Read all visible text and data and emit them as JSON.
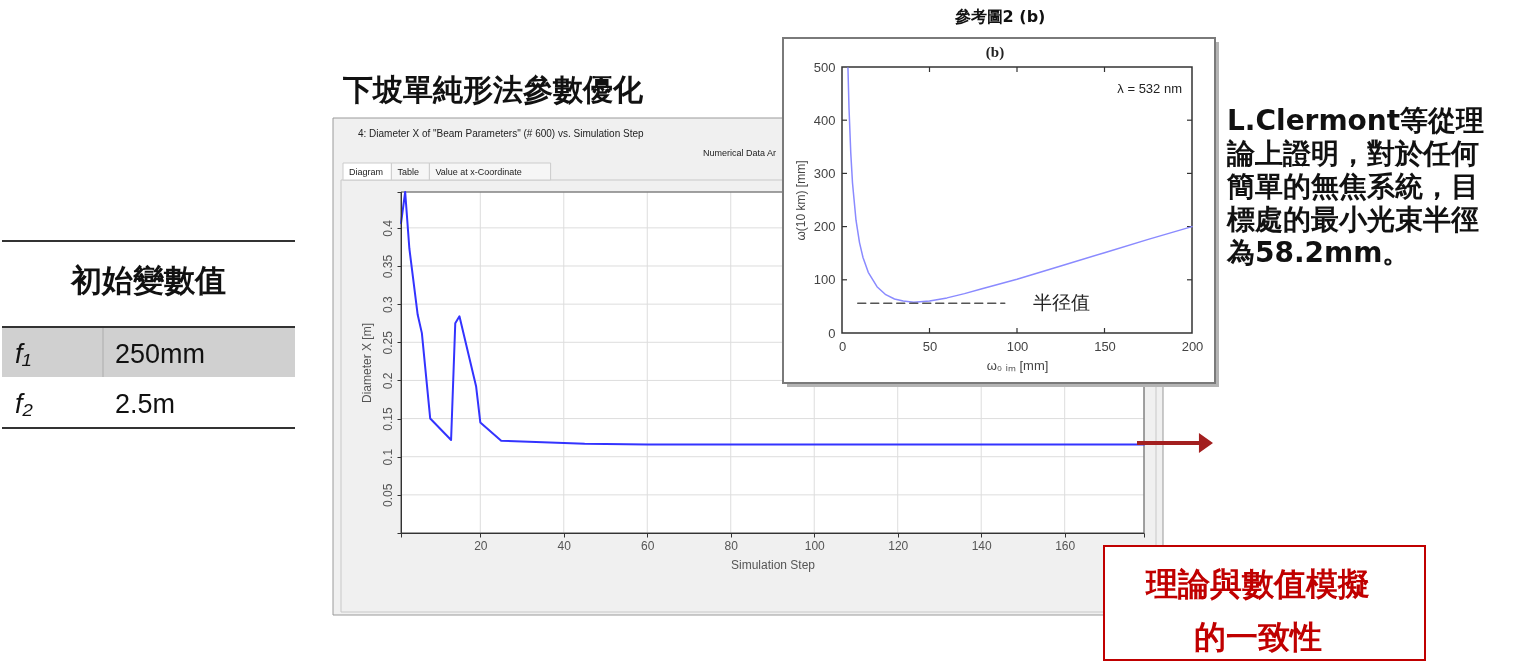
{
  "chart_data": [
    {
      "type": "line",
      "title": "下坡單純形法參數優化",
      "subtitle": "4: Diameter X of \"Beam Parameters\" (# 600) vs. Simulation Step",
      "xlabel": "Simulation Step",
      "ylabel": "Diameter X [m]",
      "x": [
        1,
        2,
        3,
        5,
        6,
        8,
        13,
        14,
        15,
        19,
        20,
        25,
        45,
        60,
        179
      ],
      "values": [
        0.406,
        0.447,
        0.373,
        0.286,
        0.262,
        0.15,
        0.122,
        0.275,
        0.284,
        0.192,
        0.145,
        0.121,
        0.117,
        0.116,
        0.116
      ],
      "color": "#3333ff",
      "xlim": [
        1,
        179
      ],
      "xticks": [
        {
          "value": 1,
          "label": null
        },
        20,
        40,
        60,
        80,
        100,
        120,
        140,
        160,
        {
          "value": 179,
          "label": null
        }
      ],
      "ylim": [
        0,
        0.447
      ],
      "yticks": [
        {
          "value": 0,
          "label": null
        },
        0.05,
        0.1,
        0.15,
        0.2,
        0.25,
        0.3,
        0.35,
        0.4,
        {
          "value": 0.447,
          "label": null
        }
      ],
      "grid": true,
      "annotations": [
        "Numerical Data Ar",
        "Diagram",
        "Table",
        "Value at x-Coordinate",
        "初始變數值",
        "f₁",
        "250mm",
        "f₂",
        "2.5m"
      ]
    },
    {
      "type": "line",
      "title": "參考圖2 (b)",
      "subtitle": "(b)",
      "xlabel": "ω₀ ᵢₘ [mm]",
      "ylabel": "ω(10 km) [mm]",
      "series": [
        {
          "color": "#8a8aff",
          "x": [
            3.4,
            4,
            5,
            6,
            8,
            10,
            12,
            15,
            20,
            25,
            30,
            35,
            41,
            50,
            60,
            70,
            80,
            100,
            125,
            150,
            175,
            200
          ],
          "values": [
            498,
            423,
            339,
            282,
            212,
            170,
            142,
            114,
            87,
            72,
            64,
            60,
            58,
            60,
            66,
            74,
            83,
            101,
            126,
            151,
            176,
            200
          ]
        },
        {
          "type": "line",
          "color": "#555555",
          "line_style": "dashed",
          "x": [
            9,
            93
          ],
          "values": [
            56,
            56
          ]
        }
      ],
      "xlim": [
        0,
        200
      ],
      "xticks": [
        0,
        50,
        100,
        150,
        200
      ],
      "ylim": [
        0,
        500
      ],
      "yticks": [
        0,
        100,
        200,
        300,
        400,
        500
      ],
      "annotations": [
        "λ = 532 nm",
        {
          "text": "半径值",
          "x": 93,
          "y": 56
        },
        "L.Clermont等從理論上證明，對於任何簡單的無焦系統，目標處的最小光束半徑為58.2mm。",
        "理論與數值模擬的一致性"
      ]
    }
  ]
}
